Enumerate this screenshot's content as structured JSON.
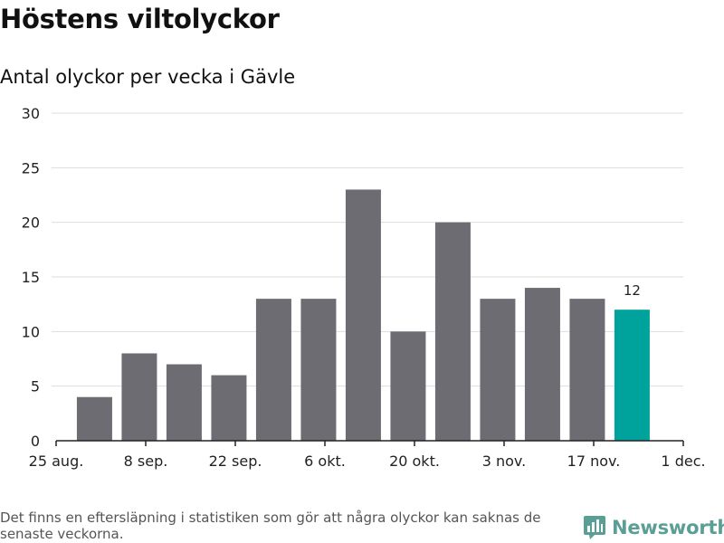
{
  "title": "Höstens viltolyckor",
  "subtitle": "Antal olyckor per vecka i Gävle",
  "footnote": "Det finns en eftersläpning i statistiken som gör att några olyckor kan saknas de senaste veckorna.",
  "brand": {
    "name": "Newsworthy",
    "icon": "newsworthy-logo-icon"
  },
  "colors": {
    "bar": "#6d6c72",
    "highlight": "#00a39b",
    "grid": "#dddddd",
    "brand": "#5a9e96"
  },
  "chart_data": {
    "type": "bar",
    "x": [
      "2020-08-31",
      "2020-09-07",
      "2020-09-14",
      "2020-09-21",
      "2020-09-28",
      "2020-10-05",
      "2020-10-12",
      "2020-10-19",
      "2020-10-26",
      "2020-11-02",
      "2020-11-09",
      "2020-11-16",
      "2020-11-23"
    ],
    "values": [
      4,
      8,
      7,
      6,
      13,
      13,
      23,
      10,
      20,
      13,
      14,
      13,
      12
    ],
    "highlight_last": true,
    "data_labels": [
      {
        "index": 12,
        "text": "12"
      }
    ],
    "x_ticks": [
      {
        "date": "2020-08-25",
        "label": "25 aug."
      },
      {
        "date": "2020-09-08",
        "label": "8 sep."
      },
      {
        "date": "2020-09-22",
        "label": "22 sep."
      },
      {
        "date": "2020-10-06",
        "label": "6 okt."
      },
      {
        "date": "2020-10-20",
        "label": "20 okt."
      },
      {
        "date": "2020-11-03",
        "label": "3 nov."
      },
      {
        "date": "2020-11-17",
        "label": "17 nov."
      },
      {
        "date": "2020-12-01",
        "label": "1 dec."
      }
    ],
    "xlim": [
      "2020-08-25",
      "2020-12-01"
    ],
    "y_ticks": [
      0,
      5,
      10,
      15,
      20,
      25,
      30
    ],
    "ylim": [
      0,
      30
    ],
    "grid": true,
    "xlabel": "",
    "ylabel": ""
  }
}
